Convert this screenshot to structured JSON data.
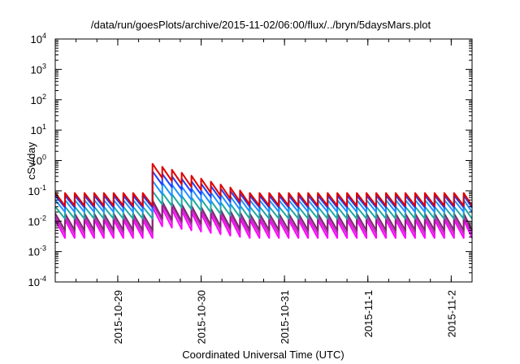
{
  "chart_data": {
    "type": "line",
    "title": "/data/run/goesPlots/archive/2015-11-02/06:00/flux/../bryn/5daysMars.plot",
    "xlabel": "Coordinated Universal Time (UTC)",
    "ylabel": "cSv/day",
    "y_scale": "log",
    "ylim": [
      0.0001,
      10000
    ],
    "xlim": [
      "2015-10-28T06:00",
      "2015-11-02T06:00"
    ],
    "y_ticks": [
      {
        "value": 0.0001,
        "base": "10",
        "exp": "-4"
      },
      {
        "value": 0.001,
        "base": "10",
        "exp": "-3"
      },
      {
        "value": 0.01,
        "base": "10",
        "exp": "-2"
      },
      {
        "value": 0.1,
        "base": "10",
        "exp": "-1"
      },
      {
        "value": 1,
        "base": "10",
        "exp": "0"
      },
      {
        "value": 10,
        "base": "10",
        "exp": "1"
      },
      {
        "value": 100,
        "base": "10",
        "exp": "2"
      },
      {
        "value": 1000,
        "base": "10",
        "exp": "3"
      },
      {
        "value": 10000,
        "base": "10",
        "exp": "4"
      }
    ],
    "x_ticks": [
      {
        "value": "2015-10-29T00:00",
        "label": "2015-10-29"
      },
      {
        "value": "2015-10-30T00:00",
        "label": "2015-10-30"
      },
      {
        "value": "2015-10-31T00:00",
        "label": "2015-10-31"
      },
      {
        "value": "2015-11-01T00:00",
        "label": "2015-11-1"
      },
      {
        "value": "2015-11-02T00:00",
        "label": "2015-11-2"
      }
    ],
    "grid": false,
    "legend": "none",
    "series": [
      {
        "color": "#dd0000",
        "peak": 0.085,
        "trough": 0.032,
        "event_peak": 0.8
      },
      {
        "color": "#1f3fff",
        "peak": 0.07,
        "trough": 0.028,
        "event_peak": 0.45
      },
      {
        "color": "#2090ff",
        "peak": 0.05,
        "trough": 0.02,
        "event_peak": 0.22
      },
      {
        "color": "#20a8a0",
        "peak": 0.03,
        "trough": 0.012,
        "event_peak": 0.1
      },
      {
        "color": "#7a2a6a",
        "peak": 0.018,
        "trough": 0.005,
        "event_peak": 0.05
      },
      {
        "color": "#cc22cc",
        "peak": 0.014,
        "trough": 0.0038,
        "event_peak": 0.04
      },
      {
        "color": "#ff00ff",
        "peak": 0.011,
        "trough": 0.0028,
        "event_peak": 0.03
      }
    ],
    "sawtooth_period_hours": 2.8,
    "event_start": "2015-10-29T09:30",
    "event_peak_time": "2015-10-29T11:00",
    "event_decay_end": "2015-10-30T15:00"
  }
}
